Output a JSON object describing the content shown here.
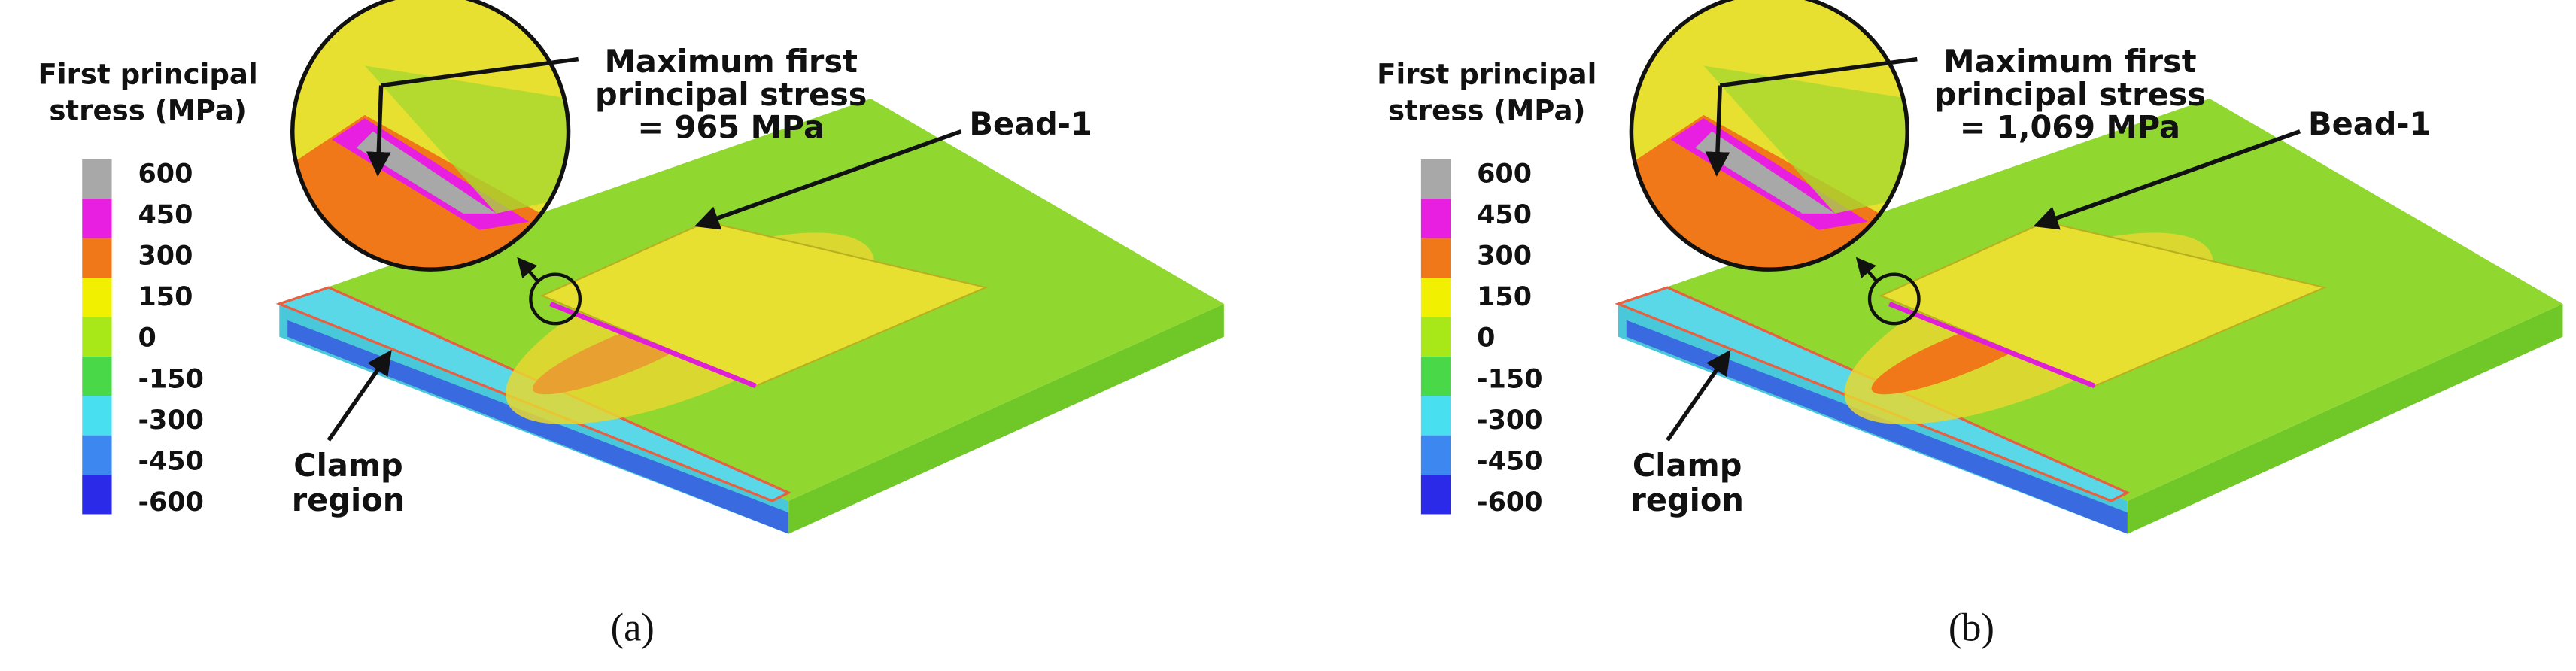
{
  "panels": [
    {
      "legend": {
        "title": [
          "First principal",
          "stress (MPa)"
        ],
        "labels": [
          "600",
          "450",
          "300",
          "150",
          "0",
          "-150",
          "-300",
          "-450",
          "-600"
        ],
        "colors": [
          "#a8a8a8",
          "#e81ee0",
          "#f07818",
          "#f0f000",
          "#a8e818",
          "#48d848",
          "#48e0f0",
          "#3c88f0",
          "#2a2ae8"
        ]
      },
      "max_stress": [
        "Maximum first",
        "principal stress",
        "= 965 MPa"
      ],
      "bead": "Bead-1",
      "clamp": [
        "Clamp",
        "region"
      ],
      "caption": "(a)"
    },
    {
      "legend": {
        "title": [
          "First principal",
          "stress (MPa)"
        ],
        "labels": [
          "600",
          "450",
          "300",
          "150",
          "0",
          "-150",
          "-300",
          "-450",
          "-600"
        ],
        "colors": [
          "#a8a8a8",
          "#e81ee0",
          "#f07818",
          "#f0f000",
          "#a8e818",
          "#48d848",
          "#48e0f0",
          "#3c88f0",
          "#2a2ae8"
        ]
      },
      "max_stress": [
        "Maximum first",
        "principal stress",
        "= 1,069 MPa"
      ],
      "bead": "Bead-1",
      "clamp": [
        "Clamp",
        "region"
      ],
      "caption": "(b)"
    }
  ]
}
